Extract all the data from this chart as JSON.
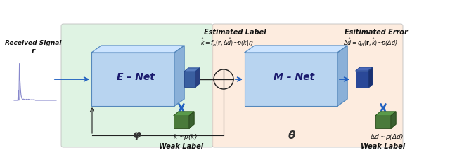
{
  "bg_color": "#ffffff",
  "enet_bg_color": "#d8f0dc",
  "mnet_bg_color": "#fde8d8",
  "enet_label": "E – Net",
  "mnet_label": "M – Net",
  "phi_label": "φ",
  "theta_label": "θ",
  "received_signal_label": "Received Signal",
  "r_label": "r",
  "weak_label_left": "Weak Label",
  "weak_label_left_math": "$\\bar{k}$ ~p(k)",
  "weak_label_right": "Weak Label",
  "weak_label_right_math": "$\\Delta\\bar{d}$ ~p(Δd)",
  "estimated_label_title": "Estimated Label",
  "estimated_label_math": "$\\hat{k} = f_{\\varphi}(\\mathbf{r}, \\Delta\\hat{d})$~p(k|r)",
  "estimated_error_title": "Esitimated Error",
  "estimated_error_math": "$\\Delta\\hat{d} = g_{\\theta}(\\mathbf{r}, \\hat{k})$~p(Δd)",
  "box_face": "#b8d4f0",
  "box_top": "#cce4ff",
  "box_side": "#8ab0d8",
  "small_blue_face": "#3a5fa0",
  "small_blue_top": "#5a7fc0",
  "small_blue_side": "#2a4080",
  "small_green_face": "#4a7a3a",
  "small_green_top": "#5a9a4a",
  "small_green_side": "#3a6030",
  "arrow_color": "#2060c0",
  "line_color": "#222222",
  "signal_color": "#8888cc",
  "text_color": "#111111"
}
